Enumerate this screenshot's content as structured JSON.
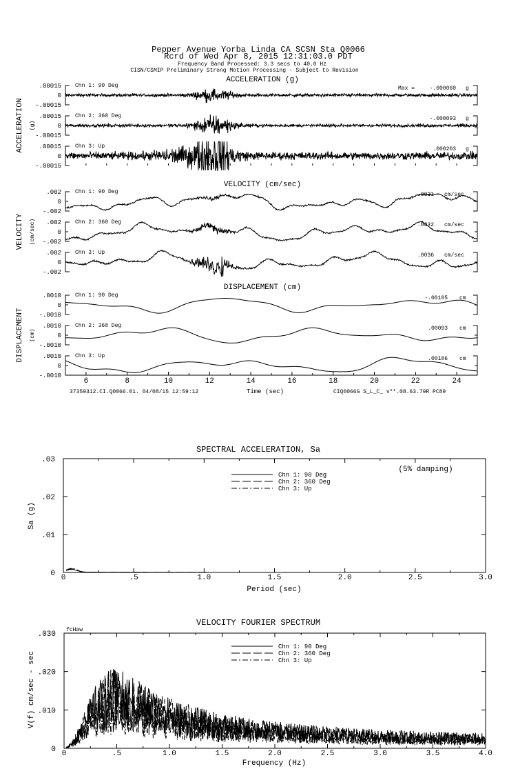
{
  "header": {
    "line1": "Pepper Avenue Yorba Linda CA    SCSN Sta Q0066",
    "line2": "Rcrd of Wed Apr  8, 2015 12:31:03.0 PDT",
    "line3": "Frequency Band Processed: 3.3 secs to 40.0 Hz",
    "line4": "CISN/CSMIP Preliminary Strong Motion Processing - Subject to Revision"
  },
  "footer": {
    "left": "37359312.CI.Q0066.01. 04/08/15 12:59:12",
    "right": "CIQ0066G  S_L_C_  v**.08.63.79R PC89"
  },
  "chart_data": [
    {
      "type": "line",
      "title": "ACCELERATION (g)",
      "ylabel": "ACCELERATION",
      "yunit": "(g)",
      "xlabel": "Time (sec)",
      "xlim": [
        5,
        25
      ],
      "xticks": [
        "6",
        "8",
        "10",
        "12",
        "14",
        "16",
        "18",
        "20",
        "22",
        "24"
      ],
      "ylim": [
        -0.00015,
        0.00015
      ],
      "ytick_labels": [
        ".00015",
        "0",
        "-.00015"
      ],
      "max_prefix": "Max =",
      "channels": [
        {
          "name": "Chn 1: 90 Deg",
          "peak": "-.000060",
          "unit": "g",
          "peak_value": -6e-05
        },
        {
          "name": "Chn 2: 360 Deg",
          "peak": "-.000093",
          "unit": "g",
          "peak_value": -9.3e-05
        },
        {
          "name": "Chn 3: Up",
          "peak": ".000203",
          "unit": "g",
          "peak_value": 0.000203
        }
      ]
    },
    {
      "type": "line",
      "title": "VELOCITY (cm/sec)",
      "ylabel": "VELOCITY",
      "yunit": "(cm/sec)",
      "xlim": [
        5,
        25
      ],
      "ylim": [
        -0.002,
        0.002
      ],
      "ytick_labels": [
        ".002",
        "0",
        "-.002"
      ],
      "channels": [
        {
          "name": "Chn 1: 90 Deg",
          "peak": ".0031",
          "unit": "cm/sec",
          "peak_value": 0.0031
        },
        {
          "name": "Chn 2: 360 Deg",
          "peak": ".0032",
          "unit": "cm/sec",
          "peak_value": 0.0032
        },
        {
          "name": "Chn 3: Up",
          "peak": ".0036",
          "unit": "cm/sec",
          "peak_value": 0.0036
        }
      ]
    },
    {
      "type": "line",
      "title": "DISPLACEMENT (cm)",
      "ylabel": "DISPLACEMENT",
      "yunit": "(cm)",
      "xlim": [
        5,
        25
      ],
      "ylim": [
        -0.001,
        0.001
      ],
      "ytick_labels": [
        ".0010",
        "0",
        "-.0010"
      ],
      "channels": [
        {
          "name": "Chn 1: 90 Deg",
          "peak": "-.00105",
          "unit": "cm",
          "peak_value": -0.00105
        },
        {
          "name": "Chn 2: 360 Deg",
          "peak": ".00093",
          "unit": "cm",
          "peak_value": 0.00093
        },
        {
          "name": "Chn 3: Up",
          "peak": ".00106",
          "unit": "cm",
          "peak_value": 0.00106
        }
      ]
    },
    {
      "type": "line",
      "title": "SPECTRAL ACCELERATION, Sa",
      "xlabel": "Period (sec)",
      "ylabel": "Sa (g)",
      "annotation": "(5% damping)",
      "xlim": [
        0,
        3.0
      ],
      "ylim": [
        0,
        0.03
      ],
      "xticks": [
        "0",
        ".5",
        "1.0",
        "1.5",
        "2.0",
        "2.5",
        "3.0"
      ],
      "yticks": [
        "0",
        ".01",
        ".02",
        ".03"
      ],
      "legend": [
        "Chn 1: 90 Deg",
        "Chn 2: 360 Deg",
        "Chn 3: Up"
      ],
      "legend_position": "top-center",
      "approx_peak_value": 0.0007
    },
    {
      "type": "line",
      "title": "VELOCITY FOURIER SPECTRUM",
      "xlabel": "Frequency (Hz)",
      "ylabel": "V(f)  cm/sec - sec",
      "corner_label": "fcHaw",
      "xlim": [
        0,
        4.0
      ],
      "ylim": [
        0,
        0.03
      ],
      "xticks": [
        "0",
        ".5",
        "1.0",
        "1.5",
        "2.0",
        "2.5",
        "3.0",
        "3.5",
        "4.0"
      ],
      "yticks": [
        "0",
        ".010",
        ".020",
        ".030"
      ],
      "legend": [
        "Chn 1: 90 Deg",
        "Chn 2: 360 Deg",
        "Chn 3: Up"
      ],
      "legend_position": "top-center",
      "approx_peak": {
        "frequency": 0.5,
        "value": 0.022
      }
    }
  ]
}
